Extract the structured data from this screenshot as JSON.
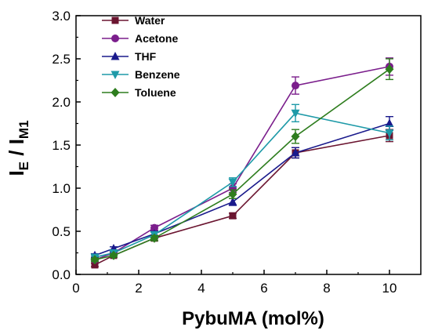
{
  "chart_data": {
    "type": "line",
    "xlabel": "PybuMA (mol%)",
    "ylabel": {
      "main": "I",
      "sub_e": "E",
      "sep": " / I",
      "sub_m": "M1"
    },
    "xlim": [
      0,
      11
    ],
    "ylim": [
      0,
      3.0
    ],
    "xticks": [
      "0",
      "2",
      "4",
      "6",
      "8",
      "10"
    ],
    "xtick_values": [
      0,
      2,
      4,
      6,
      8,
      10
    ],
    "yticks": [
      "0.0",
      "0.5",
      "1.0",
      "1.5",
      "2.0",
      "2.5",
      "3.0"
    ],
    "ytick_values": [
      0,
      0.5,
      1.0,
      1.5,
      2.0,
      2.5,
      3.0
    ],
    "grid": false,
    "legend_position": "top-left",
    "series": [
      {
        "name": "Water",
        "color": "#6b1530",
        "marker": "square",
        "x": [
          0.6,
          1.2,
          2.5,
          5,
          7,
          10
        ],
        "y": [
          0.11,
          0.22,
          0.42,
          0.68,
          1.41,
          1.61
        ],
        "err": [
          0.02,
          0.02,
          0.03,
          0.03,
          0.06,
          0.07
        ]
      },
      {
        "name": "Acetone",
        "color": "#7b1e8c",
        "marker": "circle",
        "x": [
          0.6,
          1.2,
          2.5,
          5,
          7,
          10
        ],
        "y": [
          0.17,
          0.25,
          0.54,
          1.0,
          2.19,
          2.41
        ],
        "err": [
          0.02,
          0.03,
          0.03,
          0.05,
          0.1,
          0.1
        ]
      },
      {
        "name": "THF",
        "color": "#1a1a8c",
        "marker": "triangle-up",
        "x": [
          0.6,
          1.2,
          2.5,
          5,
          7,
          10
        ],
        "y": [
          0.22,
          0.3,
          0.47,
          0.84,
          1.41,
          1.75
        ],
        "err": [
          0.02,
          0.02,
          0.03,
          0.04,
          0.06,
          0.08
        ]
      },
      {
        "name": "Benzene",
        "color": "#1e9aa8",
        "marker": "triangle-down",
        "x": [
          0.6,
          1.2,
          2.5,
          5,
          7,
          10
        ],
        "y": [
          0.2,
          0.25,
          0.46,
          1.07,
          1.87,
          1.64
        ],
        "err": [
          0.02,
          0.02,
          0.03,
          0.05,
          0.1,
          0.08
        ]
      },
      {
        "name": "Toluene",
        "color": "#2e7d1e",
        "marker": "diamond",
        "x": [
          0.6,
          1.2,
          2.5,
          5,
          7,
          10
        ],
        "y": [
          0.17,
          0.22,
          0.42,
          0.93,
          1.6,
          2.38
        ],
        "err": [
          0.02,
          0.02,
          0.03,
          0.05,
          0.08,
          0.12
        ]
      }
    ]
  }
}
